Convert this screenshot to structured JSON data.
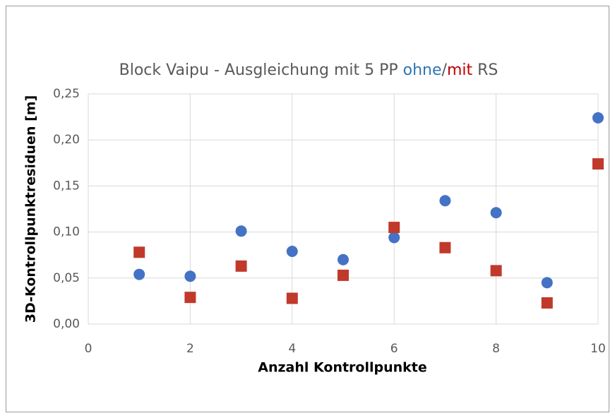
{
  "chart_data": {
    "type": "scatter",
    "title": [
      {
        "text": "Block Vaipu - Ausgleichung mit 5 PP ",
        "color": "#595959"
      },
      {
        "text": "ohne",
        "color": "#2e75b6"
      },
      {
        "text": "/",
        "color": "#595959"
      },
      {
        "text": "mit",
        "color": "#c00000"
      },
      {
        "text": " RS",
        "color": "#595959"
      }
    ],
    "x_label": "Anzahl Kontrollpunkte",
    "y_label": "3D-Kontrollpunktresiduen [m]",
    "series": [
      {
        "color": "#4472c4",
        "marker": "circle",
        "x": [
          1,
          2,
          3,
          4,
          5,
          6,
          7,
          8,
          9,
          10
        ],
        "values": [
          0.054,
          0.052,
          0.101,
          0.079,
          0.07,
          0.094,
          0.134,
          0.121,
          0.045,
          0.224
        ]
      },
      {
        "color": "#c0392b",
        "marker": "square",
        "x": [
          1,
          2,
          3,
          4,
          5,
          6,
          7,
          8,
          9,
          10
        ],
        "values": [
          0.078,
          0.029,
          0.063,
          0.028,
          0.053,
          0.105,
          0.083,
          0.058,
          0.023,
          0.174
        ]
      }
    ],
    "xlim": [
      0,
      10
    ],
    "xticks": [
      0,
      2,
      4,
      6,
      8,
      10
    ],
    "ylim": [
      0,
      0.25
    ],
    "yticks": [
      {
        "value": 0,
        "label": "0,00"
      },
      {
        "value": 0.05,
        "label": "0,05"
      },
      {
        "value": 0.1,
        "label": "0,10"
      },
      {
        "value": 0.15,
        "label": "0,15"
      },
      {
        "value": 0.2,
        "label": "0,20"
      },
      {
        "value": 0.25,
        "label": "0,25"
      }
    ],
    "grid": true
  }
}
